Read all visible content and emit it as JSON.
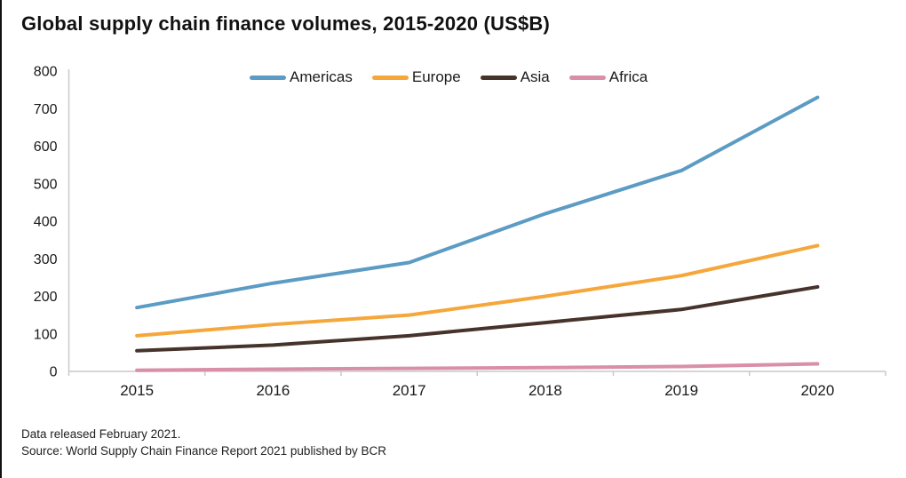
{
  "title": "Global supply chain finance volumes, 2015-2020 (US$B)",
  "notes": {
    "released": "Data released February 2021.",
    "source": "Source: World Supply Chain Finance Report 2021 published by BCR"
  },
  "chart_data": {
    "type": "line",
    "title": "Global supply chain finance volumes, 2015-2020 (US$B)",
    "x": [
      "2015",
      "2016",
      "2017",
      "2018",
      "2019",
      "2020"
    ],
    "series": [
      {
        "name": "Americas",
        "color": "#5B9BC4",
        "values": [
          170,
          235,
          290,
          420,
          535,
          730
        ]
      },
      {
        "name": "Europe",
        "color": "#F5A73B",
        "values": [
          95,
          125,
          150,
          200,
          255,
          335
        ]
      },
      {
        "name": "Asia",
        "color": "#46332B",
        "values": [
          55,
          70,
          95,
          130,
          165,
          225
        ]
      },
      {
        "name": "Africa",
        "color": "#D98FA7",
        "values": [
          3,
          6,
          8,
          10,
          13,
          20
        ]
      }
    ],
    "xlabel": "",
    "ylabel": "",
    "ylim": [
      0,
      800
    ],
    "ytick_step": 100,
    "grid": false,
    "legend_position": "top",
    "line_width": 4,
    "axis_color": "#c9c9c9",
    "text_color": "#1a1a1a"
  }
}
